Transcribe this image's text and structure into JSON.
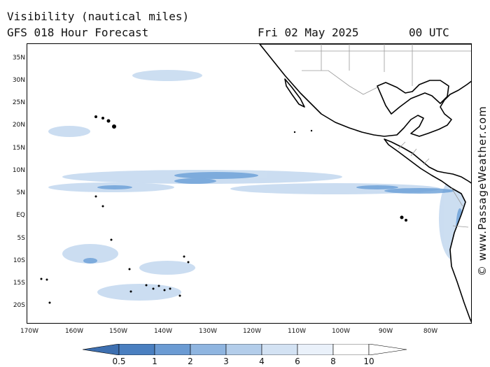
{
  "header": {
    "title": "Visibility (nautical miles)",
    "subtitle": "GFS 018 Hour Forecast",
    "date": "Fri 02 May 2025",
    "time": "00 UTC"
  },
  "map": {
    "region": "Eastern Pacific",
    "lat_labels": [
      "35N",
      "30N",
      "25N",
      "20N",
      "15N",
      "10N",
      "5N",
      "EQ",
      "5S",
      "10S",
      "15S",
      "20S"
    ],
    "lon_labels": [
      "170W",
      "160W",
      "150W",
      "140W",
      "130W",
      "120W",
      "110W",
      "100W",
      "90W",
      "80W"
    ],
    "colors": {
      "land": "#ffffff",
      "coast": "#000000",
      "border": "#9a9a9a",
      "low_vis": "#6a9fd8",
      "light_vis": "#c3d8ef"
    }
  },
  "legend": {
    "labels": [
      "0.5",
      "1",
      "2",
      "3",
      "4",
      "6",
      "8",
      "10"
    ],
    "colors": [
      "#3d6fb0",
      "#4a7fc0",
      "#6b9bd3",
      "#8fb5e0",
      "#b3cdea",
      "#d3e2f3",
      "#eaf1fa",
      "#ffffff"
    ]
  },
  "credit": "© www.PassageWeather.com"
}
